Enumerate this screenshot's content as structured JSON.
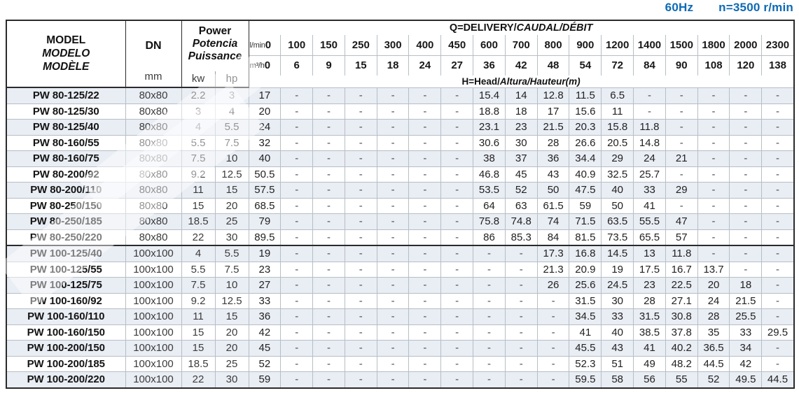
{
  "page_title": {
    "frequency": "60Hz",
    "speed": "n=3500 r/min"
  },
  "colors": {
    "accent_blue": "#0d6ab4",
    "row_shade": "#e9edf4",
    "border_dark": "#2a2a2a",
    "border_light": "#b7bec6"
  },
  "table": {
    "header": {
      "model_lines": [
        "MODEL",
        "MODELO",
        "MODÈLE"
      ],
      "dn_label": "DN",
      "dn_unit": "mm",
      "power_lines": [
        "Power",
        "Potencia",
        "Puissance"
      ],
      "power_unit_kw": "kw",
      "power_unit_hp": "hp",
      "q_title": {
        "plain": "Q=DELIVERY/",
        "italic": "CAUDAL/DÉBIT"
      },
      "h_title": {
        "plain": "H=Head/",
        "italic": "Altura/Hauteur(m)"
      },
      "flow_lmin_label": "l/min",
      "flow_m3h_label": "m³/h",
      "flow_lmin": [
        "0",
        "100",
        "150",
        "250",
        "300",
        "400",
        "450",
        "600",
        "700",
        "800",
        "900",
        "1200",
        "1400",
        "1500",
        "1800",
        "2000",
        "2300"
      ],
      "flow_m3h": [
        "0",
        "6",
        "9",
        "15",
        "18",
        "24",
        "27",
        "36",
        "42",
        "48",
        "54",
        "72",
        "84",
        "90",
        "108",
        "120",
        "138"
      ]
    },
    "rows": [
      {
        "model": "PW 80-125/22",
        "dn": "80x80",
        "kw": "2.2",
        "hp": "3",
        "heads": [
          "17",
          "-",
          "-",
          "-",
          "-",
          "-",
          "-",
          "15.4",
          "14",
          "12.8",
          "11.5",
          "6.5",
          "-",
          "-",
          "-",
          "-",
          "-"
        ]
      },
      {
        "model": "PW 80-125/30",
        "dn": "80x80",
        "kw": "3",
        "hp": "4",
        "heads": [
          "20",
          "-",
          "-",
          "-",
          "-",
          "-",
          "-",
          "18.8",
          "18",
          "17",
          "15.6",
          "11",
          "-",
          "-",
          "-",
          "-",
          "-"
        ]
      },
      {
        "model": "PW 80-125/40",
        "dn": "80x80",
        "kw": "4",
        "hp": "5.5",
        "heads": [
          "24",
          "-",
          "-",
          "-",
          "-",
          "-",
          "-",
          "23.1",
          "23",
          "21.5",
          "20.3",
          "15.8",
          "11.8",
          "-",
          "-",
          "-",
          "-"
        ]
      },
      {
        "model": "PW 80-160/55",
        "dn": "80x80",
        "kw": "5.5",
        "hp": "7.5",
        "heads": [
          "32",
          "-",
          "-",
          "-",
          "-",
          "-",
          "-",
          "30.6",
          "30",
          "28",
          "26.6",
          "20.5",
          "14.8",
          "-",
          "-",
          "-",
          "-"
        ]
      },
      {
        "model": "PW 80-160/75",
        "dn": "80x80",
        "kw": "7.5",
        "hp": "10",
        "heads": [
          "40",
          "-",
          "-",
          "-",
          "-",
          "-",
          "-",
          "38",
          "37",
          "36",
          "34.4",
          "29",
          "24",
          "21",
          "-",
          "-",
          "-"
        ]
      },
      {
        "model": "PW 80-200/92",
        "dn": "80x80",
        "kw": "9.2",
        "hp": "12.5",
        "heads": [
          "50.5",
          "-",
          "-",
          "-",
          "-",
          "-",
          "-",
          "46.8",
          "45",
          "43",
          "40.9",
          "32.5",
          "25.7",
          "-",
          "-",
          "-",
          "-"
        ]
      },
      {
        "model": "PW 80-200/110",
        "dn": "80x80",
        "kw": "11",
        "hp": "15",
        "heads": [
          "57.5",
          "-",
          "-",
          "-",
          "-",
          "-",
          "-",
          "53.5",
          "52",
          "50",
          "47.5",
          "40",
          "33",
          "29",
          "-",
          "-",
          "-"
        ]
      },
      {
        "model": "PW 80-250/150",
        "dn": "80x80",
        "kw": "15",
        "hp": "20",
        "heads": [
          "68.5",
          "-",
          "-",
          "-",
          "-",
          "-",
          "-",
          "64",
          "63",
          "61.5",
          "59",
          "50",
          "41",
          "-",
          "-",
          "-",
          "-"
        ]
      },
      {
        "model": "PW 80-250/185",
        "dn": "80x80",
        "kw": "18.5",
        "hp": "25",
        "heads": [
          "79",
          "-",
          "-",
          "-",
          "-",
          "-",
          "-",
          "75.8",
          "74.8",
          "74",
          "71.5",
          "63.5",
          "55.5",
          "47",
          "-",
          "-",
          "-"
        ]
      },
      {
        "model": "PW 80-250/220",
        "dn": "80x80",
        "kw": "22",
        "hp": "30",
        "heads": [
          "89.5",
          "-",
          "-",
          "-",
          "-",
          "-",
          "-",
          "86",
          "85.3",
          "84",
          "81.5",
          "73.5",
          "65.5",
          "57",
          "-",
          "-",
          "-"
        ]
      },
      {
        "model": "PW 100-125/40",
        "dn": "100x100",
        "kw": "4",
        "hp": "5.5",
        "group_start": true,
        "heads": [
          "19",
          "-",
          "-",
          "-",
          "-",
          "-",
          "-",
          "-",
          "-",
          "17.3",
          "16.8",
          "14.5",
          "13",
          "11.8",
          "-",
          "-",
          "-"
        ]
      },
      {
        "model": "PW 100-125/55",
        "dn": "100x100",
        "kw": "5.5",
        "hp": "7.5",
        "heads": [
          "23",
          "-",
          "-",
          "-",
          "-",
          "-",
          "-",
          "-",
          "-",
          "21.3",
          "20.9",
          "19",
          "17.5",
          "16.7",
          "13.7",
          "-",
          "-"
        ]
      },
      {
        "model": "PW 100-125/75",
        "dn": "100x100",
        "kw": "7.5",
        "hp": "10",
        "heads": [
          "27",
          "-",
          "-",
          "-",
          "-",
          "-",
          "-",
          "-",
          "-",
          "26",
          "25.6",
          "24.5",
          "23",
          "22.5",
          "20",
          "18",
          "-"
        ]
      },
      {
        "model": "PW 100-160/92",
        "dn": "100x100",
        "kw": "9.2",
        "hp": "12.5",
        "heads": [
          "33",
          "-",
          "-",
          "-",
          "-",
          "-",
          "-",
          "-",
          "-",
          "-",
          "31.5",
          "30",
          "28",
          "27.1",
          "24",
          "21.5",
          "-"
        ]
      },
      {
        "model": "PW 100-160/110",
        "dn": "100x100",
        "kw": "11",
        "hp": "15",
        "heads": [
          "36",
          "-",
          "-",
          "-",
          "-",
          "-",
          "-",
          "-",
          "-",
          "-",
          "34.5",
          "33",
          "31.5",
          "30.8",
          "28",
          "25.5",
          "-"
        ]
      },
      {
        "model": "PW 100-160/150",
        "dn": "100x100",
        "kw": "15",
        "hp": "20",
        "heads": [
          "42",
          "-",
          "-",
          "-",
          "-",
          "-",
          "-",
          "-",
          "-",
          "-",
          "41",
          "40",
          "38.5",
          "37.8",
          "35",
          "33",
          "29.5"
        ]
      },
      {
        "model": "PW 100-200/150",
        "dn": "100x100",
        "kw": "15",
        "hp": "20",
        "heads": [
          "45",
          "-",
          "-",
          "-",
          "-",
          "-",
          "-",
          "-",
          "-",
          "-",
          "45.5",
          "43",
          "41",
          "40.2",
          "36.5",
          "34",
          "-"
        ]
      },
      {
        "model": "PW 100-200/185",
        "dn": "100x100",
        "kw": "18.5",
        "hp": "25",
        "heads": [
          "52",
          "-",
          "-",
          "-",
          "-",
          "-",
          "-",
          "-",
          "-",
          "-",
          "52.3",
          "51",
          "49",
          "48.2",
          "44.5",
          "42",
          "-"
        ]
      },
      {
        "model": "PW 100-200/220",
        "dn": "100x100",
        "kw": "22",
        "hp": "30",
        "heads": [
          "59",
          "-",
          "-",
          "-",
          "-",
          "-",
          "-",
          "-",
          "-",
          "-",
          "59.5",
          "58",
          "56",
          "55",
          "52",
          "49.5",
          "44.5"
        ]
      }
    ]
  }
}
